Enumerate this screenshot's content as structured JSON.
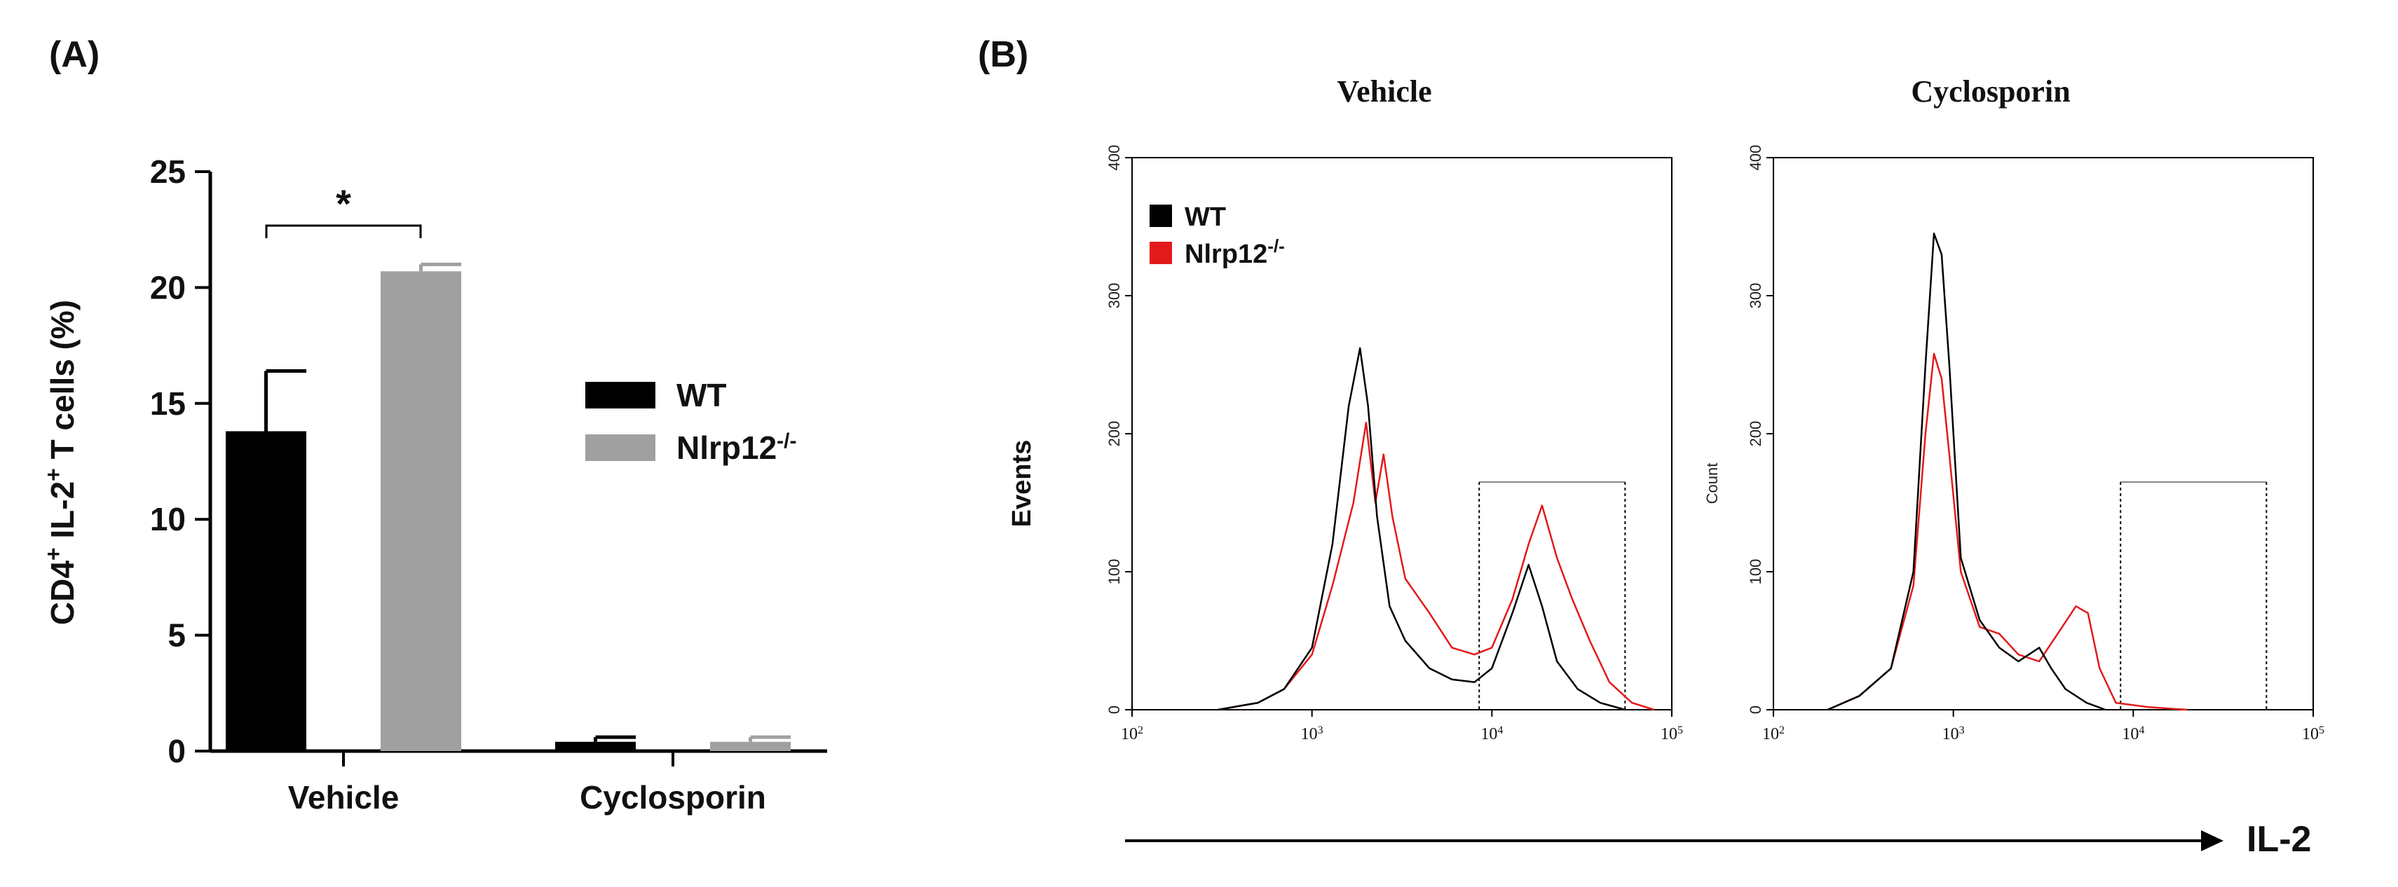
{
  "figure": {
    "panel_a_label": "(A)",
    "panel_b_label": "(B)"
  },
  "chart_data": [
    {
      "type": "bar",
      "panel": "A",
      "ylabel": "CD4",
      "ylabel_sup": "+",
      "ylabel_mid": " IL-2",
      "ylabel_sup2": "+",
      "ylabel_end": " T cells (%)",
      "ylim": [
        0,
        25
      ],
      "yticks": [
        "0",
        "5",
        "10",
        "15",
        "20",
        "25"
      ],
      "categories": [
        "Vehicle",
        "Cyclosporin"
      ],
      "series": [
        {
          "name": "WT",
          "color": "#000000",
          "values": [
            13.8,
            0.4
          ],
          "errors": [
            2.6,
            0.2
          ]
        },
        {
          "name": "Nlrp12",
          "sup": "-/-",
          "color": "#a0a0a0",
          "values": [
            20.7,
            0.4
          ],
          "errors": [
            0.3,
            0.2
          ]
        }
      ],
      "significance": "*",
      "legend_position": "right"
    },
    {
      "type": "line",
      "panel": "B",
      "subplots": [
        {
          "title": "Vehicle",
          "ylabel": "Events",
          "ylim": [
            0,
            400
          ],
          "yticks": [
            "0",
            "100",
            "200",
            "300",
            "400"
          ],
          "xscale": "log",
          "xlim": [
            100,
            100000
          ],
          "gate": {
            "x": [
              8500,
              55000
            ],
            "height": 165
          },
          "series": [
            {
              "name": "WT",
              "color": "#000000",
              "points": [
                [
                  300,
                  0
                ],
                [
                  500,
                  5
                ],
                [
                  700,
                  15
                ],
                [
                  1000,
                  45
                ],
                [
                  1300,
                  120
                ],
                [
                  1600,
                  220
                ],
                [
                  1850,
                  262
                ],
                [
                  2050,
                  220
                ],
                [
                  2300,
                  140
                ],
                [
                  2700,
                  75
                ],
                [
                  3300,
                  50
                ],
                [
                  4500,
                  30
                ],
                [
                  6000,
                  22
                ],
                [
                  8000,
                  20
                ],
                [
                  10000,
                  30
                ],
                [
                  13000,
                  70
                ],
                [
                  16000,
                  105
                ],
                [
                  19000,
                  75
                ],
                [
                  23000,
                  35
                ],
                [
                  30000,
                  15
                ],
                [
                  40000,
                  5
                ],
                [
                  55000,
                  0
                ]
              ]
            },
            {
              "name": "Nlrp12",
              "sup": "-/-",
              "color": "#e31a1c",
              "points": [
                [
                  300,
                  0
                ],
                [
                  500,
                  5
                ],
                [
                  700,
                  15
                ],
                [
                  1000,
                  40
                ],
                [
                  1300,
                  90
                ],
                [
                  1700,
                  150
                ],
                [
                  2000,
                  208
                ],
                [
                  2250,
                  150
                ],
                [
                  2500,
                  185
                ],
                [
                  2800,
                  140
                ],
                [
                  3300,
                  95
                ],
                [
                  4500,
                  70
                ],
                [
                  6000,
                  45
                ],
                [
                  8000,
                  40
                ],
                [
                  10000,
                  45
                ],
                [
                  13000,
                  80
                ],
                [
                  16000,
                  120
                ],
                [
                  19000,
                  148
                ],
                [
                  23000,
                  110
                ],
                [
                  28000,
                  80
                ],
                [
                  35000,
                  50
                ],
                [
                  45000,
                  20
                ],
                [
                  60000,
                  5
                ],
                [
                  80000,
                  0
                ]
              ]
            }
          ]
        },
        {
          "title": "Cyclosporin",
          "ylabel": "Count",
          "ylim": [
            0,
            400
          ],
          "yticks": [
            "0",
            "100",
            "200",
            "300",
            "400"
          ],
          "xscale": "log",
          "xlim": [
            100,
            100000
          ],
          "gate": {
            "x": [
              8500,
              55000
            ],
            "height": 165
          },
          "series": [
            {
              "name": "WT",
              "color": "#000000",
              "points": [
                [
                  200,
                  0
                ],
                [
                  300,
                  10
                ],
                [
                  450,
                  30
                ],
                [
                  600,
                  100
                ],
                [
                  700,
                  250
                ],
                [
                  780,
                  345
                ],
                [
                  860,
                  330
                ],
                [
                  950,
                  250
                ],
                [
                  1100,
                  110
                ],
                [
                  1400,
                  65
                ],
                [
                  1800,
                  45
                ],
                [
                  2300,
                  35
                ],
                [
                  3000,
                  45
                ],
                [
                  3500,
                  30
                ],
                [
                  4200,
                  15
                ],
                [
                  5500,
                  5
                ],
                [
                  7000,
                  0
                ]
              ]
            },
            {
              "name": "Nlrp12",
              "sup": "-/-",
              "color": "#e31a1c",
              "points": [
                [
                  200,
                  0
                ],
                [
                  300,
                  10
                ],
                [
                  450,
                  30
                ],
                [
                  600,
                  90
                ],
                [
                  700,
                  200
                ],
                [
                  780,
                  258
                ],
                [
                  860,
                  240
                ],
                [
                  950,
                  185
                ],
                [
                  1100,
                  100
                ],
                [
                  1400,
                  60
                ],
                [
                  1800,
                  55
                ],
                [
                  2300,
                  40
                ],
                [
                  3000,
                  35
                ],
                [
                  3800,
                  55
                ],
                [
                  4800,
                  75
                ],
                [
                  5600,
                  70
                ],
                [
                  6500,
                  30
                ],
                [
                  8000,
                  5
                ],
                [
                  12000,
                  2
                ],
                [
                  20000,
                  0
                ]
              ]
            }
          ]
        }
      ],
      "legend": [
        {
          "name": "WT",
          "color": "#000000"
        },
        {
          "name": "Nlrp12",
          "sup": "-/-",
          "color": "#e31a1c"
        }
      ],
      "xaxis_label": "IL-2"
    }
  ]
}
